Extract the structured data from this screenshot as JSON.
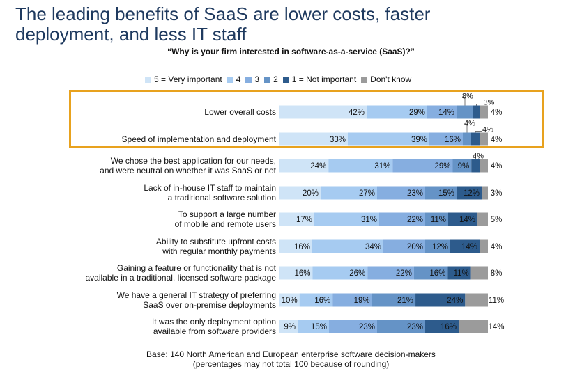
{
  "headline": {
    "line1": "The leading benefits of SaaS are lower costs, faster",
    "line2": "deployment, and less IT staff"
  },
  "base_note": {
    "line1": "Base: 140 North American and European enterprise software decision-makers",
    "line2": "(percentages may not total 100 because of rounding)"
  },
  "colors": {
    "highlight_box": "#e8a21e",
    "series": [
      "#cfe4f7",
      "#a6cbf1",
      "#86aee0",
      "#6593c6",
      "#2d5b8c",
      "#9b9b9b"
    ]
  },
  "chart_data": {
    "type": "bar",
    "orientation": "horizontal",
    "stacked": true,
    "title": "“Why is your firm interested in software-as-a-service (SaaS)?”",
    "xlim": [
      0,
      100
    ],
    "grid": false,
    "legend_position": "top",
    "categories": [
      [
        "Lower overall costs"
      ],
      [
        "Speed of implementation and deployment"
      ],
      [
        "We chose the best application for our needs,",
        "and were neutral on whether it was SaaS or not"
      ],
      [
        "Lack of in-house IT staff to maintain",
        "a traditional software solution"
      ],
      [
        "To support a large number",
        "of mobile and remote users"
      ],
      [
        "Ability to substitute upfront costs",
        "with regular monthly payments"
      ],
      [
        "Gaining a feature or functionality that is not",
        "available in a traditional, licensed software package"
      ],
      [
        "We have a general IT strategy of preferring",
        "SaaS over on-premise deployments"
      ],
      [
        "It was the only deployment option",
        "available from software providers"
      ]
    ],
    "series": [
      {
        "name": "5 = Very important",
        "values": [
          42,
          33,
          24,
          20,
          17,
          16,
          16,
          10,
          9
        ]
      },
      {
        "name": "4",
        "values": [
          29,
          39,
          31,
          27,
          31,
          34,
          26,
          16,
          15
        ]
      },
      {
        "name": "3",
        "values": [
          14,
          16,
          29,
          23,
          22,
          20,
          22,
          19,
          23
        ]
      },
      {
        "name": "2",
        "values": [
          8,
          4,
          9,
          15,
          11,
          12,
          16,
          21,
          23
        ]
      },
      {
        "name": "1 = Not important",
        "values": [
          3,
          4,
          4,
          12,
          14,
          14,
          11,
          24,
          16
        ]
      },
      {
        "name": "Don't know",
        "values": [
          4,
          4,
          4,
          3,
          5,
          4,
          8,
          11,
          14
        ]
      }
    ],
    "highlighted_categories": [
      0,
      1
    ]
  }
}
